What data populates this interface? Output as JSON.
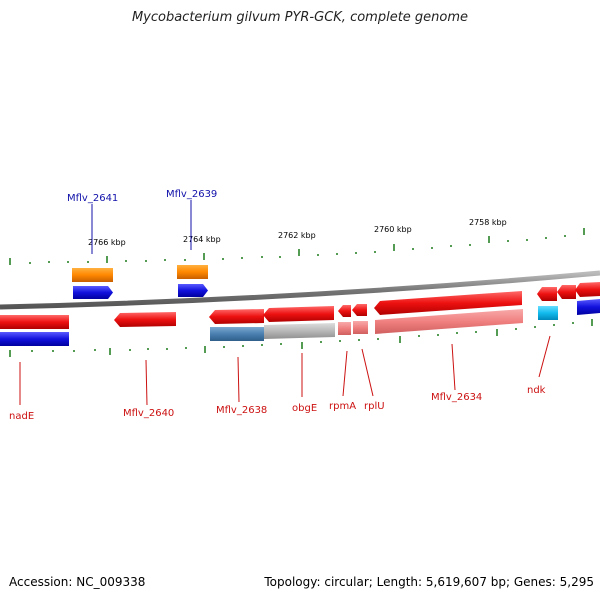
{
  "title": "Mycobacterium gilvum PYR-GCK, complete genome",
  "footer": {
    "accession": "Accession: NC_009338",
    "summary": "Topology: circular; Length: 5,619,607 bp; Genes: 5,295"
  },
  "colors": {
    "backbone": "#888888",
    "tick": "#1a7a1a",
    "forward_gene": "#ee1111",
    "forward_cds": "#1111dd",
    "reverse_gene": "#ee1111",
    "reverse_cds": "#1122dd",
    "rna_gene": "#ff8800",
    "cyan_cds": "#11bbee",
    "pale_red": "#f08080",
    "gray_cds": "#b8b8b8",
    "steel_cds": "#4a7fb0",
    "label_blue": "#1111aa",
    "label_red": "#cc1111"
  },
  "scale_labels": [
    {
      "text": "2766 kbp"
    },
    {
      "text": "2764 kbp"
    },
    {
      "text": "2762 kbp"
    },
    {
      "text": "2760 kbp"
    },
    {
      "text": "2758 kbp"
    }
  ],
  "gene_labels_top": [
    {
      "text": "Mflv_2641"
    },
    {
      "text": "Mflv_2639"
    }
  ],
  "gene_labels_bottom": [
    {
      "text": "nadE"
    },
    {
      "text": "Mflv_2640"
    },
    {
      "text": "Mflv_2638"
    },
    {
      "text": "obgE"
    },
    {
      "text": "rpmA"
    },
    {
      "text": "rplU"
    },
    {
      "text": "Mflv_2634"
    },
    {
      "text": "ndk"
    }
  ]
}
